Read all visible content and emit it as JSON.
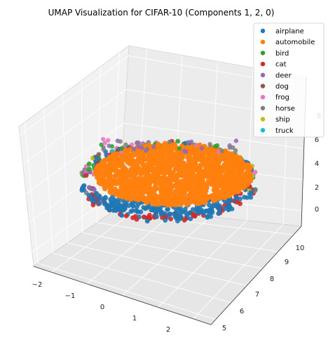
{
  "chart_data": {
    "type": "scatter",
    "projection": "3d",
    "title": "UMAP Visualization for CIFAR-10 (Components 1, 2, 0)",
    "xlabel": "",
    "ylabel": "",
    "zlabel": "",
    "x_ticks": [
      "−2",
      "−1",
      "0",
      "1",
      "2"
    ],
    "y_ticks": [
      "5",
      "6",
      "7",
      "8",
      "9",
      "10"
    ],
    "z_ticks": [
      "0",
      "2",
      "4",
      "6",
      "8"
    ],
    "xlim": [
      -2.5,
      2.5
    ],
    "ylim": [
      4.7,
      10.5
    ],
    "zlim": [
      -1,
      8.6
    ],
    "grid": true,
    "legend_position": "top-right",
    "series": [
      {
        "name": "airplane",
        "color": "#1f77b4"
      },
      {
        "name": "automobile",
        "color": "#ff7f0e"
      },
      {
        "name": "bird",
        "color": "#2ca02c"
      },
      {
        "name": "cat",
        "color": "#d62728"
      },
      {
        "name": "deer",
        "color": "#9467bd"
      },
      {
        "name": "dog",
        "color": "#8c564b"
      },
      {
        "name": "frog",
        "color": "#e377c2"
      },
      {
        "name": "horse",
        "color": "#7f7f7f"
      },
      {
        "name": "ship",
        "color": "#bcbd22"
      },
      {
        "name": "truck",
        "color": "#17becf"
      }
    ],
    "point_cloud": {
      "description_free": true,
      "dense_series": "automobile",
      "edge_series": [
        "airplane",
        "cat",
        "deer",
        "bird",
        "frog",
        "horse",
        "ship",
        "truck",
        "dog"
      ]
    }
  }
}
